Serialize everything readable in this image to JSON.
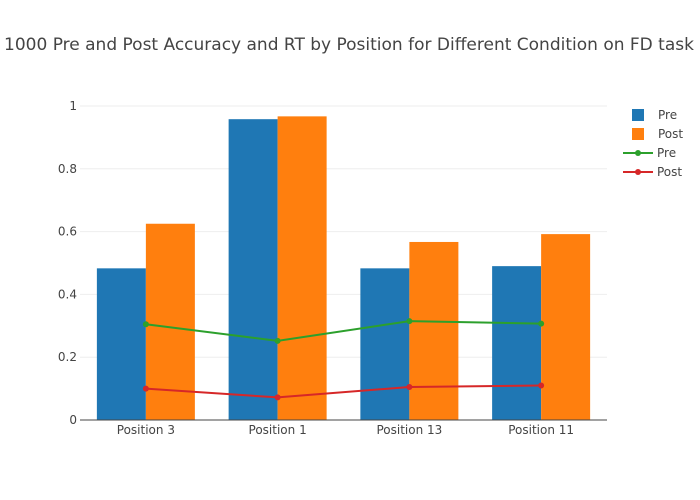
{
  "chart_data": {
    "type": "bar",
    "title": "1000 Pre and Post Accuracy and RT by Position for Different Condition on FD task",
    "categories": [
      "Position 3",
      "Position 1",
      "Position 13",
      "Position 11"
    ],
    "ylim": [
      0,
      1
    ],
    "yticks": [
      "0",
      "0.2",
      "0.4",
      "0.6",
      "0.8",
      "1"
    ],
    "ytick_values": [
      0,
      0.2,
      0.4,
      0.6,
      0.8,
      1
    ],
    "grid": true,
    "legend_position": "top-right",
    "series": [
      {
        "name": "Pre",
        "kind": "bar",
        "color": "#1f77b4",
        "values": [
          0.483,
          0.958,
          0.483,
          0.49
        ]
      },
      {
        "name": "Post",
        "kind": "bar",
        "color": "#ff7f0e",
        "values": [
          0.625,
          0.967,
          0.567,
          0.592
        ]
      },
      {
        "name": "Pre",
        "kind": "line",
        "color": "#2ca02c",
        "values": [
          0.305,
          0.252,
          0.315,
          0.307
        ]
      },
      {
        "name": "Post",
        "kind": "line",
        "color": "#d62728",
        "values": [
          0.1,
          0.072,
          0.105,
          0.11
        ]
      }
    ]
  }
}
